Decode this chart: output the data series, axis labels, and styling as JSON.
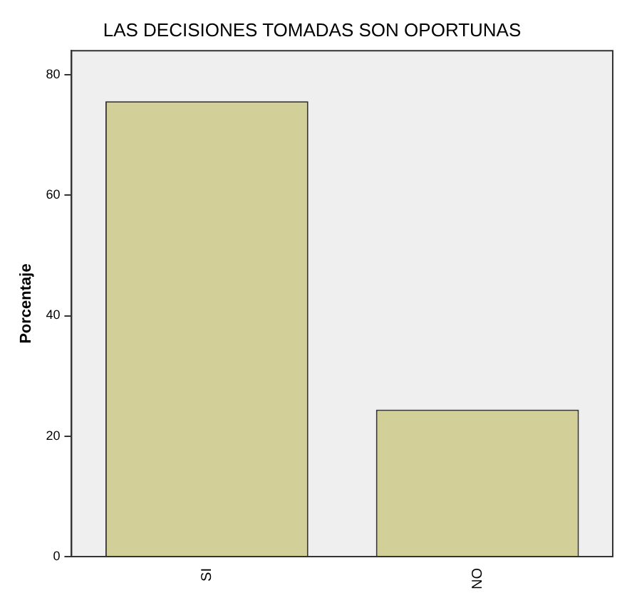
{
  "chart_data": {
    "type": "bar",
    "title": "LAS DECISIONES TOMADAS SON OPORTUNAS",
    "ylabel": "Porcentaje",
    "categories": [
      "SI",
      "NO"
    ],
    "values": [
      75.6,
      24.4
    ],
    "color": "#d2cf98",
    "ylim": [
      0,
      84
    ],
    "yticks": [
      0,
      20,
      40,
      60,
      80
    ],
    "grid": false,
    "legend": false
  }
}
